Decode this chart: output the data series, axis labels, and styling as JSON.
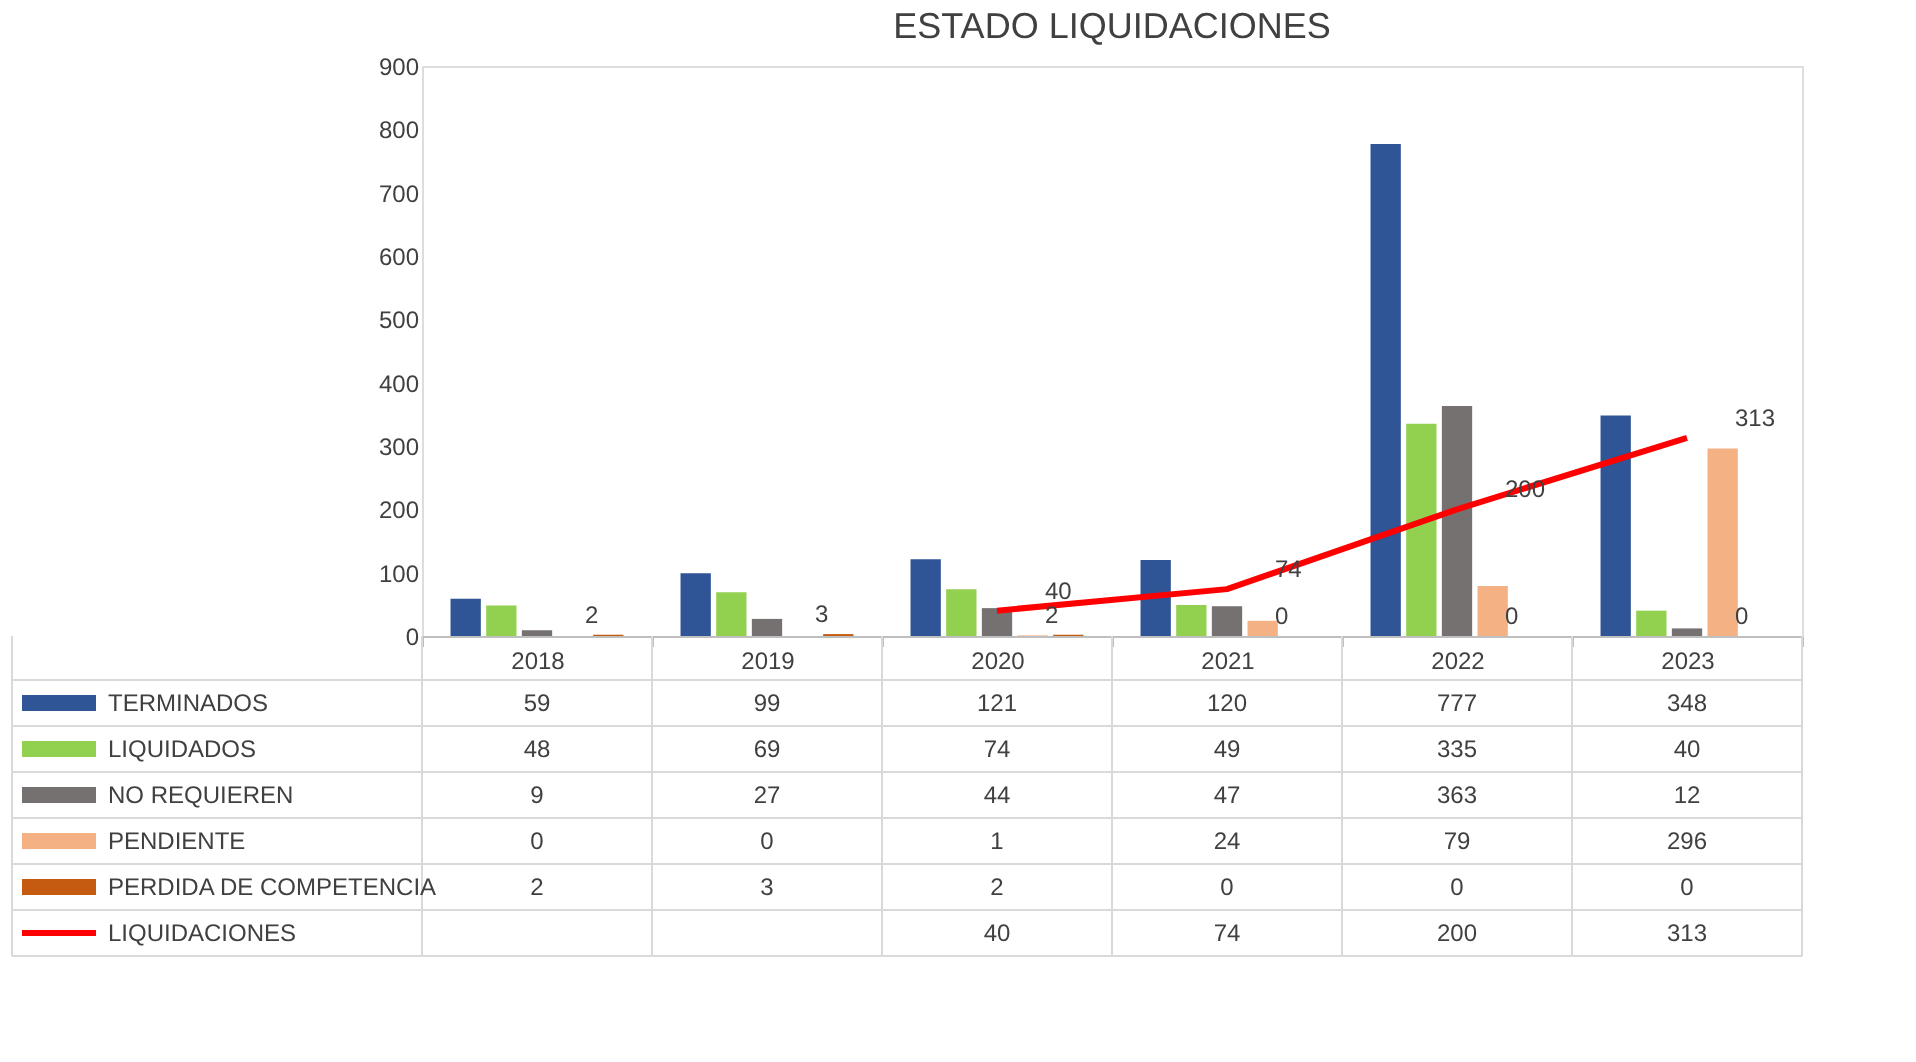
{
  "chart_data": {
    "type": "bar",
    "title": "ESTADO LIQUIDACIONES",
    "categories": [
      "2018",
      "2019",
      "2020",
      "2021",
      "2022",
      "2023"
    ],
    "ylim": [
      0,
      900
    ],
    "yticks": [
      0,
      100,
      200,
      300,
      400,
      500,
      600,
      700,
      800,
      900
    ],
    "grid": false,
    "legend": "bottom",
    "data_labels": true,
    "series": [
      {
        "name": "TERMINADOS",
        "color": "#2f5597",
        "values": [
          59,
          99,
          121,
          120,
          777,
          348
        ]
      },
      {
        "name": "LIQUIDADOS",
        "color": "#92d050",
        "values": [
          48,
          69,
          74,
          49,
          335,
          40
        ]
      },
      {
        "name": "NO REQUIEREN",
        "color": "#767171",
        "values": [
          9,
          27,
          44,
          47,
          363,
          12
        ]
      },
      {
        "name": "PENDIENTE",
        "color": "#f4b183",
        "values": [
          0,
          0,
          1,
          24,
          79,
          296
        ]
      },
      {
        "name": "PERDIDA DE COMPETENCIA",
        "color": "#c55a11",
        "values": [
          2,
          3,
          2,
          0,
          0,
          0
        ]
      },
      {
        "name": "LIQUIDACIONES",
        "type": "line",
        "color": "#ff0000",
        "values": [
          null,
          null,
          40,
          74,
          200,
          313
        ]
      }
    ],
    "annotations": [
      {
        "text": "2",
        "x": "2018",
        "y": 2
      },
      {
        "text": "3",
        "x": "2019",
        "y": 3
      },
      {
        "text": "2",
        "x": "2020",
        "y": 2
      },
      {
        "text": "0",
        "x": "2021",
        "y": 0
      },
      {
        "text": "0",
        "x": "2022",
        "y": 0
      },
      {
        "text": "0",
        "x": "2023",
        "y": 0
      },
      {
        "text": "40",
        "x": "2020",
        "y": 40
      },
      {
        "text": "74",
        "x": "2021",
        "y": 74
      },
      {
        "text": "200",
        "x": "2022",
        "y": 200
      },
      {
        "text": "313",
        "x": "2023",
        "y": 313
      }
    ]
  }
}
